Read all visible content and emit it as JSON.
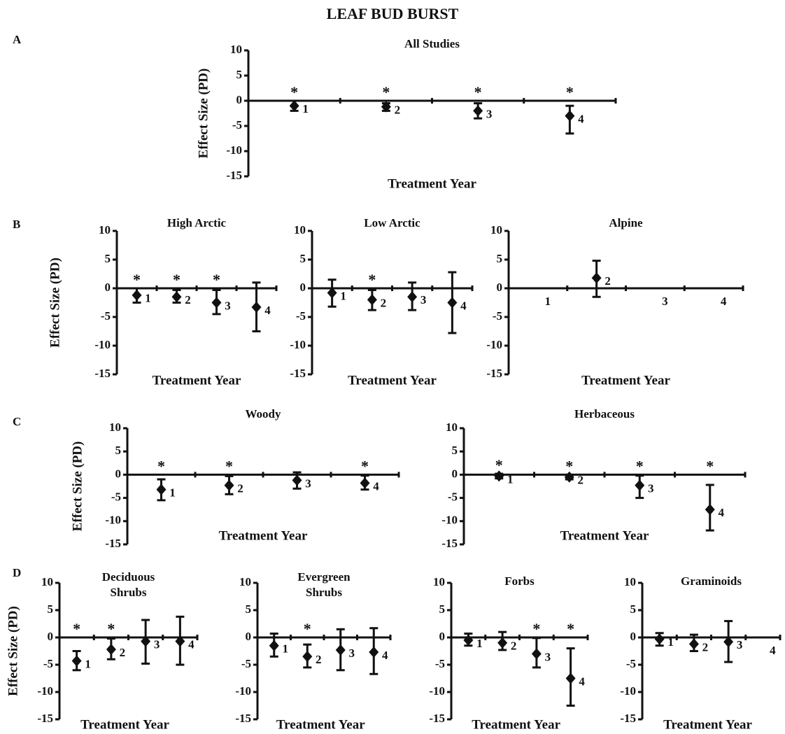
{
  "title": "LEAF BUD BURST",
  "section_labels": [
    "A",
    "B",
    "C",
    "D"
  ],
  "chart_data": [
    {
      "type": "errorbar",
      "title": [
        "All Studies"
      ],
      "ylabel": "Effect Size (PD)",
      "xlabel": "Treatment Year",
      "categories": [
        1,
        2,
        3,
        4
      ],
      "values": [
        -1,
        -1.2,
        -2,
        -3
      ],
      "lower": [
        -2,
        -2,
        -3.5,
        -6.5
      ],
      "upper": [
        0,
        -0.5,
        -0.5,
        -1
      ],
      "significance": [
        "*",
        "*",
        "*",
        "*"
      ],
      "ylim": [
        -15,
        10
      ],
      "yticks": [
        -15,
        -10,
        -5,
        0,
        5,
        10
      ]
    },
    {
      "type": "errorbar",
      "title": [
        "High Arctic"
      ],
      "ylabel": "Effect Size (PD)",
      "xlabel": "Treatment Year",
      "categories": [
        1,
        2,
        3,
        4
      ],
      "values": [
        -1.2,
        -1.5,
        -2.5,
        -3.3
      ],
      "lower": [
        -2.5,
        -2.5,
        -4.5,
        -7.5
      ],
      "upper": [
        0,
        -0.3,
        -0.3,
        1
      ],
      "significance": [
        "*",
        "*",
        "*",
        null
      ],
      "ylim": [
        -15,
        10
      ],
      "yticks": [
        -15,
        -10,
        -5,
        0,
        5,
        10
      ]
    },
    {
      "type": "errorbar",
      "title": [
        "Low Arctic"
      ],
      "xlabel": "Treatment Year",
      "categories": [
        1,
        2,
        3,
        4
      ],
      "values": [
        -0.8,
        -2,
        -1.5,
        -2.5
      ],
      "lower": [
        -3.2,
        -3.8,
        -3.8,
        -7.8
      ],
      "upper": [
        1.5,
        -0.3,
        1,
        2.8
      ],
      "significance": [
        null,
        "*",
        null,
        null
      ],
      "ylim": [
        -15,
        10
      ],
      "yticks": [
        -15,
        -10,
        -5,
        0,
        5,
        10
      ]
    },
    {
      "type": "errorbar",
      "title": [
        "Alpine"
      ],
      "xlabel": "Treatment Year",
      "categories": [
        1,
        2,
        3,
        4
      ],
      "values": [
        null,
        1.8,
        null,
        null
      ],
      "lower": [
        null,
        -1.5,
        null,
        null
      ],
      "upper": [
        null,
        4.8,
        null,
        null
      ],
      "significance": [
        null,
        null,
        null,
        null
      ],
      "ylim": [
        -15,
        10
      ],
      "yticks": [
        -15,
        -10,
        -5,
        0,
        5,
        10
      ]
    },
    {
      "type": "errorbar",
      "title": [
        "Woody"
      ],
      "ylabel": "Effect Size (PD)",
      "xlabel": "Treatment Year",
      "categories": [
        1,
        2,
        3,
        4
      ],
      "values": [
        -3.2,
        -2.3,
        -1.2,
        -1.8
      ],
      "lower": [
        -5.5,
        -4.2,
        -3,
        -3.2
      ],
      "upper": [
        -1,
        -0.3,
        0.5,
        -0.2
      ],
      "significance": [
        "*",
        "*",
        null,
        "*"
      ],
      "ylim": [
        -15,
        10
      ],
      "yticks": [
        -15,
        -10,
        -5,
        0,
        5,
        10
      ]
    },
    {
      "type": "errorbar",
      "title": [
        "Herbaceous"
      ],
      "xlabel": "Treatment Year",
      "categories": [
        1,
        2,
        3,
        4
      ],
      "values": [
        -0.3,
        -0.5,
        -2.3,
        -7.5
      ],
      "lower": [
        -0.8,
        -1,
        -5,
        -12
      ],
      "upper": [
        0.2,
        0,
        -0.2,
        -2.2
      ],
      "significance": [
        "*",
        "*",
        "*",
        "*"
      ],
      "ylim": [
        -15,
        10
      ],
      "yticks": [
        -15,
        -10,
        -5,
        0,
        5,
        10
      ]
    },
    {
      "type": "errorbar",
      "title": [
        "Deciduous",
        "Shrubs"
      ],
      "ylabel": "Effect Size (PD)",
      "xlabel": "Treatment Year",
      "categories": [
        1,
        2,
        3,
        4
      ],
      "values": [
        -4.3,
        -2.2,
        -0.7,
        -0.7
      ],
      "lower": [
        -6,
        -4,
        -4.8,
        -5
      ],
      "upper": [
        -2.5,
        -0.2,
        3.2,
        3.8
      ],
      "significance": [
        "*",
        "*",
        null,
        null
      ],
      "ylim": [
        -15,
        10
      ],
      "yticks": [
        -15,
        -10,
        -5,
        0,
        5,
        10
      ]
    },
    {
      "type": "errorbar",
      "title": [
        "Evergreen",
        "Shrubs"
      ],
      "xlabel": "Treatment Year",
      "categories": [
        1,
        2,
        3,
        4
      ],
      "values": [
        -1.5,
        -3.5,
        -2.3,
        -2.7
      ],
      "lower": [
        -3.5,
        -5.5,
        -6,
        -6.7
      ],
      "upper": [
        0.7,
        -1.3,
        1.5,
        1.7
      ],
      "significance": [
        null,
        "*",
        null,
        null
      ],
      "ylim": [
        -15,
        10
      ],
      "yticks": [
        -15,
        -10,
        -5,
        0,
        5,
        10
      ]
    },
    {
      "type": "errorbar",
      "title": [
        "Forbs"
      ],
      "xlabel": "Treatment Year",
      "categories": [
        1,
        2,
        3,
        4
      ],
      "values": [
        -0.5,
        -1,
        -3,
        -7.5
      ],
      "lower": [
        -1.5,
        -2.3,
        -5.5,
        -12.5
      ],
      "upper": [
        0.7,
        1,
        -0.1,
        -2
      ],
      "significance": [
        null,
        null,
        "*",
        "*"
      ],
      "ylim": [
        -15,
        10
      ],
      "yticks": [
        -15,
        -10,
        -5,
        0,
        5,
        10
      ]
    },
    {
      "type": "errorbar",
      "title": [
        "Graminoids"
      ],
      "xlabel": "Treatment Year",
      "categories": [
        1,
        2,
        3,
        4
      ],
      "values": [
        -0.3,
        -1.2,
        -0.8,
        null
      ],
      "lower": [
        -1.5,
        -2.5,
        -4.5,
        null
      ],
      "upper": [
        0.8,
        0.5,
        3,
        null
      ],
      "significance": [
        null,
        null,
        null,
        null
      ],
      "ylim": [
        -15,
        10
      ],
      "yticks": [
        -15,
        -10,
        -5,
        0,
        5,
        10
      ]
    }
  ]
}
